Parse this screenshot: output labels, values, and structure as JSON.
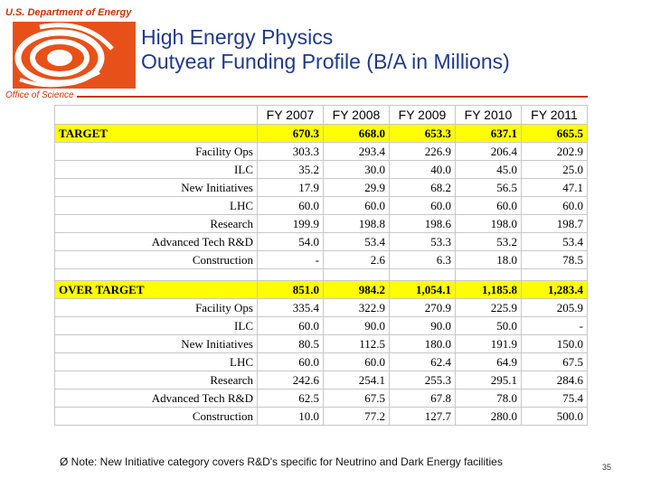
{
  "header": {
    "org_name": "U.S. Department of Energy",
    "title_line1": "High Energy Physics",
    "title_line2": "Outyear Funding Profile (B/A in Millions)",
    "office": "Office of Science"
  },
  "table": {
    "columns": [
      "",
      "FY 2007",
      "FY 2008",
      "FY 2009",
      "FY 2010",
      "FY 2011"
    ],
    "target": {
      "label": "TARGET",
      "values": [
        "670.3",
        "668.0",
        "653.3",
        "637.1",
        "665.5"
      ],
      "rows": [
        {
          "label": "Facility Ops",
          "values": [
            "303.3",
            "293.4",
            "226.9",
            "206.4",
            "202.9"
          ]
        },
        {
          "label": "ILC",
          "values": [
            "35.2",
            "30.0",
            "40.0",
            "45.0",
            "25.0"
          ]
        },
        {
          "label": "New Initiatives",
          "values": [
            "17.9",
            "29.9",
            "68.2",
            "56.5",
            "47.1"
          ]
        },
        {
          "label": "LHC",
          "values": [
            "60.0",
            "60.0",
            "60.0",
            "60.0",
            "60.0"
          ]
        },
        {
          "label": "Research",
          "values": [
            "199.9",
            "198.8",
            "198.6",
            "198.0",
            "198.7"
          ]
        },
        {
          "label": "Advanced Tech R&D",
          "values": [
            "54.0",
            "53.4",
            "53.3",
            "53.2",
            "53.4"
          ]
        },
        {
          "label": "Construction",
          "values": [
            "-",
            "2.6",
            "6.3",
            "18.0",
            "78.5"
          ]
        }
      ]
    },
    "over_target": {
      "label": "OVER TARGET",
      "values": [
        "851.0",
        "984.2",
        "1,054.1",
        "1,185.8",
        "1,283.4"
      ],
      "rows": [
        {
          "label": "Facility Ops",
          "values": [
            "335.4",
            "322.9",
            "270.9",
            "225.9",
            "205.9"
          ]
        },
        {
          "label": "ILC",
          "values": [
            "60.0",
            "90.0",
            "90.0",
            "50.0",
            "-"
          ]
        },
        {
          "label": "New Initiatives",
          "values": [
            "80.5",
            "112.5",
            "180.0",
            "191.9",
            "150.0"
          ]
        },
        {
          "label": "LHC",
          "values": [
            "60.0",
            "60.0",
            "62.4",
            "64.9",
            "67.5"
          ]
        },
        {
          "label": "Research",
          "values": [
            "242.6",
            "254.1",
            "255.3",
            "295.1",
            "284.6"
          ]
        },
        {
          "label": "Advanced Tech R&D",
          "values": [
            "62.5",
            "67.5",
            "67.8",
            "78.0",
            "75.4"
          ]
        },
        {
          "label": "Construction",
          "values": [
            "10.0",
            "77.2",
            "127.7",
            "280.0",
            "500.0"
          ]
        }
      ]
    }
  },
  "footer": {
    "note": "Ø Note: New Initiative category covers R&D's specific for Neutrino and Dark Energy facilities",
    "page_number": "35"
  },
  "colors": {
    "accent": "#cc3300",
    "title": "#1f3a8a",
    "highlight": "#ffff00"
  },
  "icons": {
    "logo": "doe-office-of-science-logo"
  }
}
